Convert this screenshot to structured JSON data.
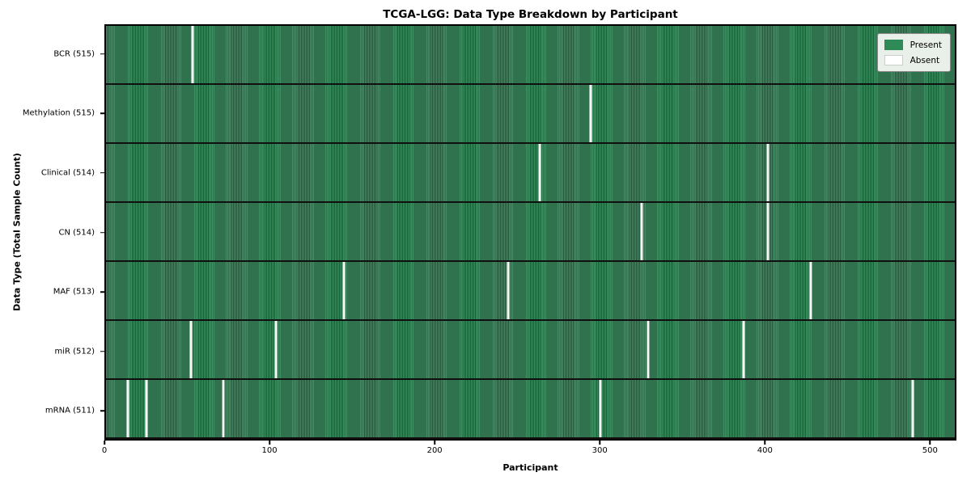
{
  "title": "TCGA-LGG: Data Type Breakdown by Participant",
  "xlabel": "Participant",
  "ylabel": "Data Type (Total Sample Count)",
  "colors": {
    "present_green": "#2e8b57",
    "present_stripe_dark": "#205638",
    "absent_white": "#ffffff",
    "legend_background": "#e9efe9",
    "row_separator": "#101010"
  },
  "legend": {
    "entries": [
      {
        "label": "Present",
        "color": "#2e8b57",
        "swatch_class": "present"
      },
      {
        "label": "Absent",
        "color": "#ffffff",
        "swatch_class": "absent"
      }
    ]
  },
  "chart_data": {
    "type": "heatmap",
    "title": "TCGA-LGG: Data Type Breakdown by Participant",
    "xlabel": "Participant",
    "ylabel": "Data Type (Total Sample Count)",
    "x_range": [
      0,
      516
    ],
    "x_ticks": [
      0,
      100,
      200,
      300,
      400,
      500
    ],
    "total_participants": 516,
    "grid": false,
    "legend_position": "upper right",
    "rows": [
      {
        "label": "BCR (515)",
        "data_type": "BCR",
        "present_count": 515,
        "absent_count": 1,
        "absent_participants": [
          52
        ]
      },
      {
        "label": "Methylation (515)",
        "data_type": "Methylation",
        "present_count": 515,
        "absent_count": 1,
        "absent_participants": [
          294
        ]
      },
      {
        "label": "Clinical (514)",
        "data_type": "Clinical",
        "present_count": 514,
        "absent_count": 2,
        "absent_participants": [
          263,
          402
        ]
      },
      {
        "label": "CN (514)",
        "data_type": "CN",
        "present_count": 514,
        "absent_count": 2,
        "absent_participants": [
          325,
          402
        ]
      },
      {
        "label": "MAF (513)",
        "data_type": "MAF",
        "present_count": 513,
        "absent_count": 3,
        "absent_participants": [
          144,
          244,
          428
        ]
      },
      {
        "label": "miR (512)",
        "data_type": "miR",
        "present_count": 512,
        "absent_count": 4,
        "absent_participants": [
          51,
          103,
          329,
          387
        ]
      },
      {
        "label": "mRNA (511)",
        "data_type": "mRNA",
        "present_count": 511,
        "absent_count": 5,
        "absent_participants": [
          13,
          24,
          71,
          300,
          490
        ]
      }
    ]
  }
}
